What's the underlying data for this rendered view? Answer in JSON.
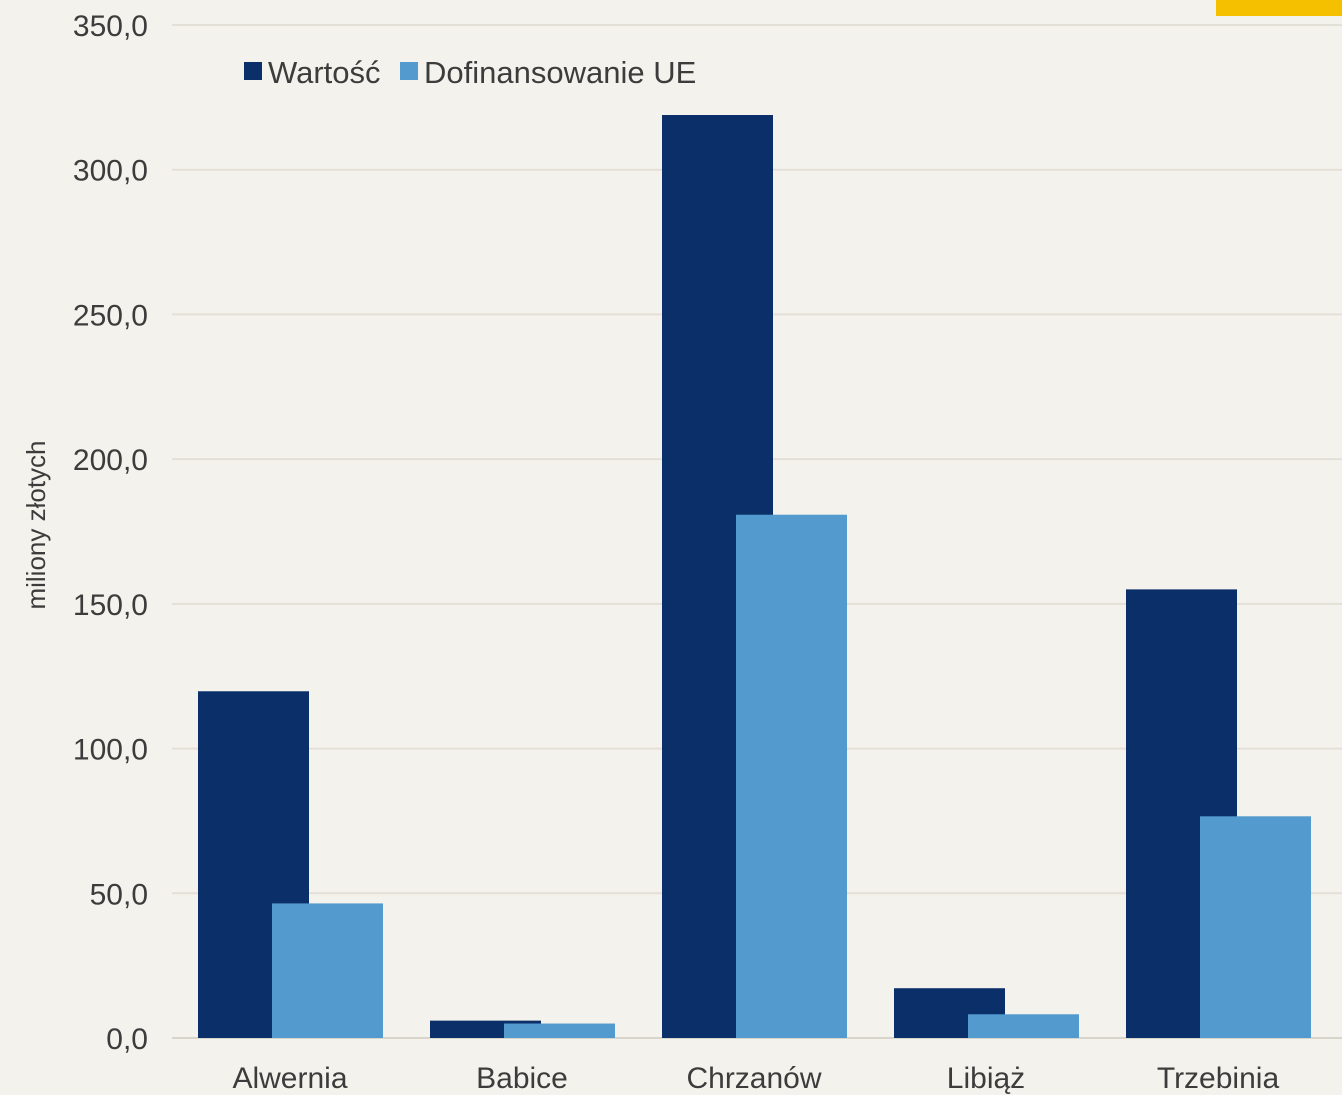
{
  "chart_data": {
    "type": "bar",
    "categories": [
      "Alwernia",
      "Babice",
      "Chrzanów",
      "Libiąż",
      "Trzebinia"
    ],
    "series": [
      {
        "name": "Wartość",
        "values": [
          119.8,
          6.0,
          318.9,
          17.2,
          155.0
        ],
        "color": "#0a2f69"
      },
      {
        "name": "Dofinansowanie UE",
        "values": [
          46.5,
          5.0,
          180.8,
          8.2,
          76.6
        ],
        "color": "#539bcf"
      }
    ],
    "ylabel": "miliony złotych",
    "ylim": [
      0,
      350
    ],
    "yticks": [
      0,
      50,
      100,
      150,
      200,
      250,
      300,
      350
    ],
    "ytick_labels": [
      "0,0",
      "50,0",
      "100,0",
      "150,0",
      "200,0",
      "250,0",
      "300,0",
      "350,0"
    ],
    "grid": true,
    "legend_position": "top-left"
  },
  "decoration": {
    "corner_accent_color": "#f5c000"
  }
}
